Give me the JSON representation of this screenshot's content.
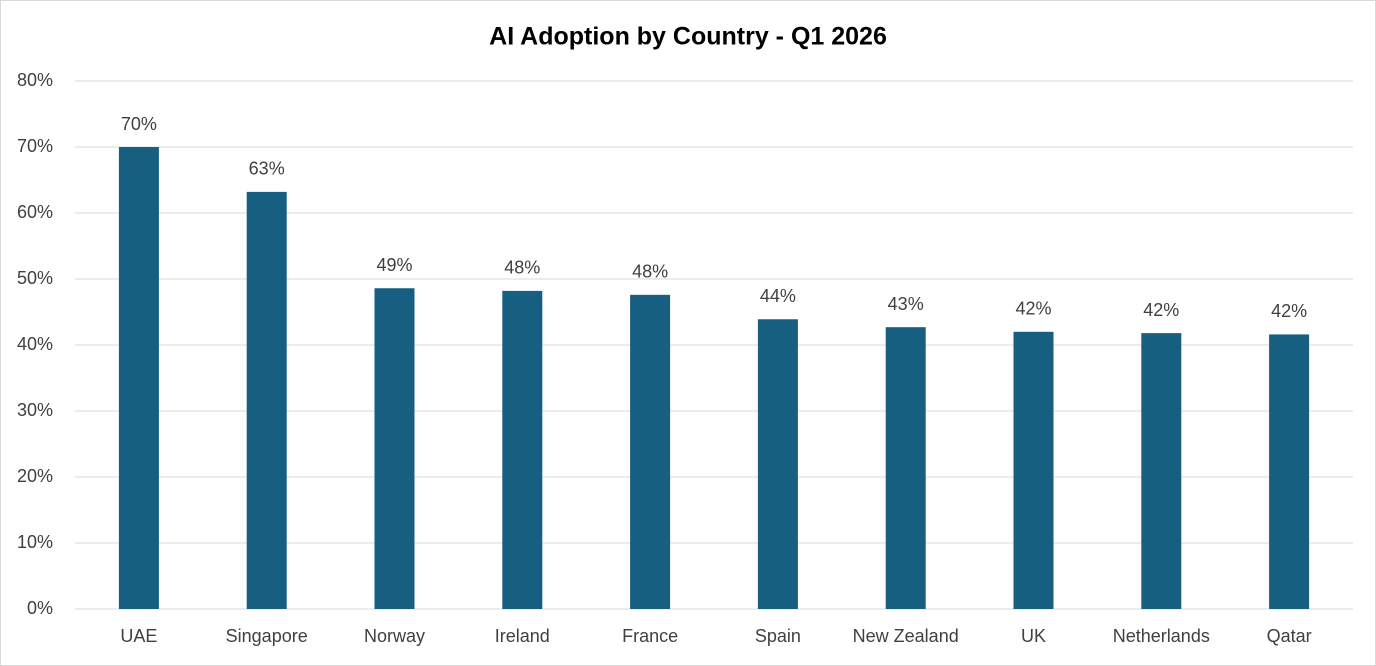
{
  "chart_data": {
    "type": "bar",
    "title": "AI Adoption by Country - Q1 2026",
    "categories": [
      "UAE",
      "Singapore",
      "Norway",
      "Ireland",
      "France",
      "Spain",
      "New Zealand",
      "UK",
      "Netherlands",
      "Qatar"
    ],
    "values": [
      70,
      63.2,
      48.6,
      48.2,
      47.6,
      43.9,
      42.7,
      42.0,
      41.8,
      41.6
    ],
    "value_labels": [
      "70%",
      "63%",
      "49%",
      "48%",
      "48%",
      "44%",
      "43%",
      "42%",
      "42%",
      "42%"
    ],
    "color": "#175f81",
    "ylim": [
      0,
      80
    ],
    "yticks": [
      {
        "value": 0,
        "label": "0%"
      },
      {
        "value": 10,
        "label": "10%"
      },
      {
        "value": 20,
        "label": "20%"
      },
      {
        "value": 30,
        "label": "30%"
      },
      {
        "value": 40,
        "label": "40%"
      },
      {
        "value": 50,
        "label": "50%"
      },
      {
        "value": 60,
        "label": "60%"
      },
      {
        "value": 70,
        "label": "70%"
      },
      {
        "value": 80,
        "label": "80%"
      }
    ],
    "grid": true
  }
}
